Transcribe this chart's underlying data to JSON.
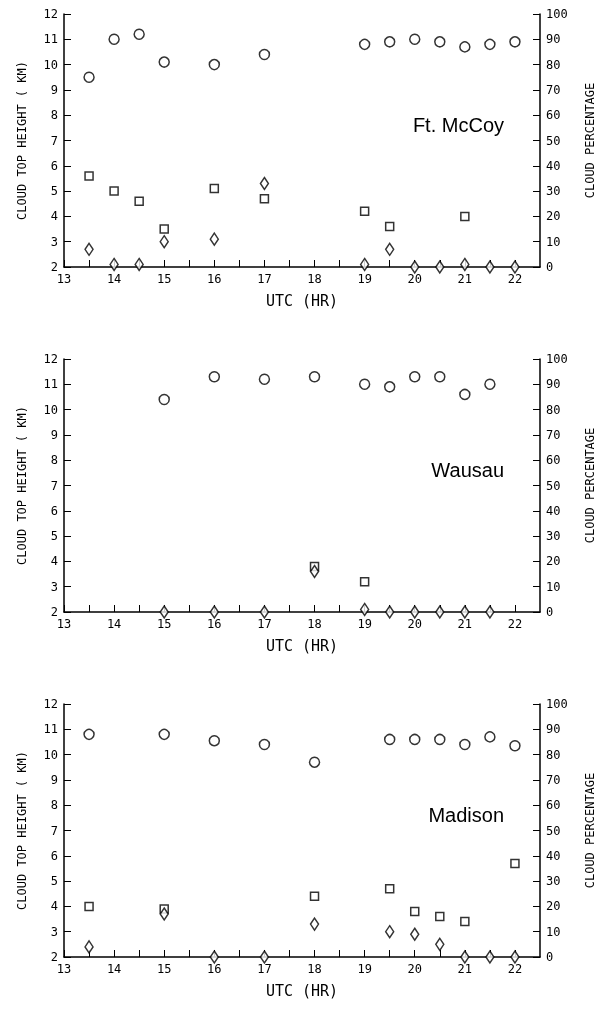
{
  "chart_data": [
    {
      "type": "scatter",
      "xlabel": "UTC (HR)",
      "ylabel": "CLOUD TOP HEIGHT ( KM)",
      "y2label": "CLOUD PERCENTAGE",
      "annotations": [
        "Ft. McCoy"
      ],
      "xlim": [
        13,
        22.5
      ],
      "xticks": [
        13,
        {
          "value": 13.5,
          "label": null
        },
        14,
        {
          "value": 14.5,
          "label": null
        },
        15,
        {
          "value": 15.5,
          "label": null
        },
        16,
        {
          "value": 16.5,
          "label": null
        },
        17,
        {
          "value": 17.5,
          "label": null
        },
        18,
        {
          "value": 18.5,
          "label": null
        },
        19,
        {
          "value": 19.5,
          "label": null
        },
        20,
        {
          "value": 20.5,
          "label": null
        },
        21,
        {
          "value": 21.5,
          "label": null
        },
        22
      ],
      "ylim": [
        2,
        12
      ],
      "yticks": [
        2,
        3,
        4,
        5,
        6,
        7,
        8,
        9,
        10,
        11,
        12
      ],
      "y2lim": [
        0,
        100
      ],
      "y2ticks": [
        0,
        10,
        20,
        30,
        40,
        50,
        60,
        70,
        80,
        90,
        100
      ],
      "series": [
        {
          "color": "#000000",
          "marker": "circle",
          "x": [
            13.5,
            14,
            14.5,
            15,
            16,
            17,
            19,
            19.5,
            20,
            20.5,
            21,
            21.5,
            22
          ],
          "values": [
            9.5,
            11.0,
            11.2,
            10.1,
            10.0,
            10.4,
            10.8,
            10.9,
            11.0,
            10.9,
            10.7,
            10.8,
            10.9
          ]
        },
        {
          "color": "#000000",
          "marker": "square",
          "axis": "y2",
          "x": [
            13.5,
            14,
            14.5,
            15,
            16,
            17,
            19,
            19.5,
            21
          ],
          "values": [
            36,
            30,
            26,
            15,
            31,
            27,
            22,
            16,
            20
          ]
        },
        {
          "color": "#000000",
          "marker": "diamond",
          "axis": "y2",
          "x": [
            13.5,
            14,
            14.5,
            15,
            16,
            17,
            19,
            19.5,
            20,
            20.5,
            21,
            21.5,
            22
          ],
          "values": [
            7,
            1,
            1,
            10,
            11,
            33,
            1,
            7,
            0,
            0,
            1,
            0,
            0
          ]
        }
      ]
    },
    {
      "type": "scatter",
      "xlabel": "UTC (HR)",
      "ylabel": "CLOUD TOP HEIGHT ( KM)",
      "y2label": "CLOUD PERCENTAGE",
      "annotations": [
        "Wausau"
      ],
      "xlim": [
        13,
        22.5
      ],
      "xticks": [
        13,
        {
          "value": 13.5,
          "label": null
        },
        14,
        {
          "value": 14.5,
          "label": null
        },
        15,
        {
          "value": 15.5,
          "label": null
        },
        16,
        {
          "value": 16.5,
          "label": null
        },
        17,
        {
          "value": 17.5,
          "label": null
        },
        18,
        {
          "value": 18.5,
          "label": null
        },
        19,
        {
          "value": 19.5,
          "label": null
        },
        20,
        {
          "value": 20.5,
          "label": null
        },
        21,
        {
          "value": 21.5,
          "label": null
        },
        22
      ],
      "ylim": [
        2,
        12
      ],
      "yticks": [
        2,
        3,
        4,
        5,
        6,
        7,
        8,
        9,
        10,
        11,
        12
      ],
      "y2lim": [
        0,
        100
      ],
      "y2ticks": [
        0,
        10,
        20,
        30,
        40,
        50,
        60,
        70,
        80,
        90,
        100
      ],
      "series": [
        {
          "color": "#000000",
          "marker": "circle",
          "x": [
            15,
            16,
            17,
            18,
            19,
            19.5,
            20,
            20.5,
            21,
            21.5
          ],
          "values": [
            10.4,
            11.3,
            11.2,
            11.3,
            11.0,
            10.9,
            11.3,
            11.3,
            10.6,
            11.0
          ]
        },
        {
          "color": "#000000",
          "marker": "square",
          "axis": "y2",
          "x": [
            18,
            19
          ],
          "values": [
            18,
            12
          ]
        },
        {
          "color": "#000000",
          "marker": "diamond",
          "axis": "y2",
          "x": [
            15,
            16,
            17,
            18,
            19,
            19.5,
            20,
            20.5,
            21,
            21.5
          ],
          "values": [
            0,
            0,
            0,
            16,
            1,
            0,
            0,
            0,
            0,
            0
          ]
        }
      ]
    },
    {
      "type": "scatter",
      "xlabel": "UTC (HR)",
      "ylabel": "CLOUD TOP HEIGHT ( KM)",
      "y2label": "CLOUD PERCENTAGE",
      "annotations": [
        "Madison"
      ],
      "xlim": [
        13,
        22.5
      ],
      "xticks": [
        13,
        {
          "value": 13.5,
          "label": null
        },
        14,
        {
          "value": 14.5,
          "label": null
        },
        15,
        {
          "value": 15.5,
          "label": null
        },
        16,
        {
          "value": 16.5,
          "label": null
        },
        17,
        {
          "value": 17.5,
          "label": null
        },
        18,
        {
          "value": 18.5,
          "label": null
        },
        19,
        {
          "value": 19.5,
          "label": null
        },
        20,
        {
          "value": 20.5,
          "label": null
        },
        21,
        {
          "value": 21.5,
          "label": null
        },
        22
      ],
      "ylim": [
        2,
        12
      ],
      "yticks": [
        2,
        3,
        4,
        5,
        6,
        7,
        8,
        9,
        10,
        11,
        12
      ],
      "y2lim": [
        0,
        100
      ],
      "y2ticks": [
        0,
        10,
        20,
        30,
        40,
        50,
        60,
        70,
        80,
        90,
        100
      ],
      "series": [
        {
          "color": "#000000",
          "marker": "circle",
          "x": [
            13.5,
            15,
            16,
            17,
            18,
            19.5,
            20,
            20.5,
            21,
            21.5,
            22
          ],
          "values": [
            10.8,
            10.8,
            10.55,
            10.4,
            9.7,
            10.6,
            10.6,
            10.6,
            10.4,
            10.7,
            10.35
          ]
        },
        {
          "color": "#000000",
          "marker": "square",
          "axis": "y2",
          "x": [
            13.5,
            15,
            18,
            19.5,
            20,
            20.5,
            21,
            22
          ],
          "values": [
            20,
            19,
            24,
            27,
            18,
            16,
            14,
            37
          ]
        },
        {
          "color": "#000000",
          "marker": "diamond",
          "axis": "y2",
          "x": [
            13.5,
            15,
            16,
            17,
            18,
            19.5,
            20,
            20.5,
            21,
            21.5,
            22
          ],
          "values": [
            4,
            17,
            0,
            0,
            13,
            10,
            9,
            5,
            0,
            0,
            0
          ]
        }
      ]
    }
  ]
}
